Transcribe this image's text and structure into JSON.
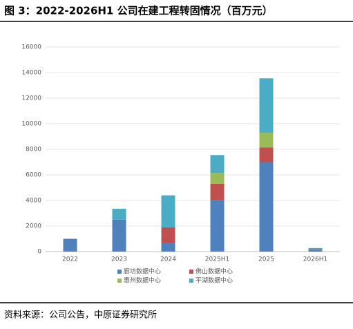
{
  "chart_data": {
    "type": "stacked_bar",
    "title": "图 3：2022-2026H1 公司在建工程转固情况（百万元）",
    "source": "资料来源：公司公告，中原证券研究所",
    "categories": [
      "2022",
      "2023",
      "2024",
      "2025H1",
      "2025",
      "2026H1"
    ],
    "series": [
      {
        "name": "廊坊数据中心",
        "color": "#4f81bd",
        "values": [
          1000,
          2500,
          700,
          4050,
          7000,
          120
        ]
      },
      {
        "name": "佛山数据中心",
        "color": "#c0504d",
        "values": [
          0,
          0,
          1200,
          1250,
          1150,
          60
        ]
      },
      {
        "name": "惠州数据中心",
        "color": "#9bbb59",
        "values": [
          0,
          0,
          0,
          850,
          1150,
          0
        ]
      },
      {
        "name": "平湖数据中心",
        "color": "#4bacc6",
        "values": [
          0,
          850,
          2500,
          1400,
          4250,
          100
        ]
      }
    ],
    "ylim": [
      0,
      16000
    ],
    "yticks": [
      0,
      2000,
      4000,
      6000,
      8000,
      10000,
      12000,
      14000,
      16000
    ],
    "grid": true
  }
}
